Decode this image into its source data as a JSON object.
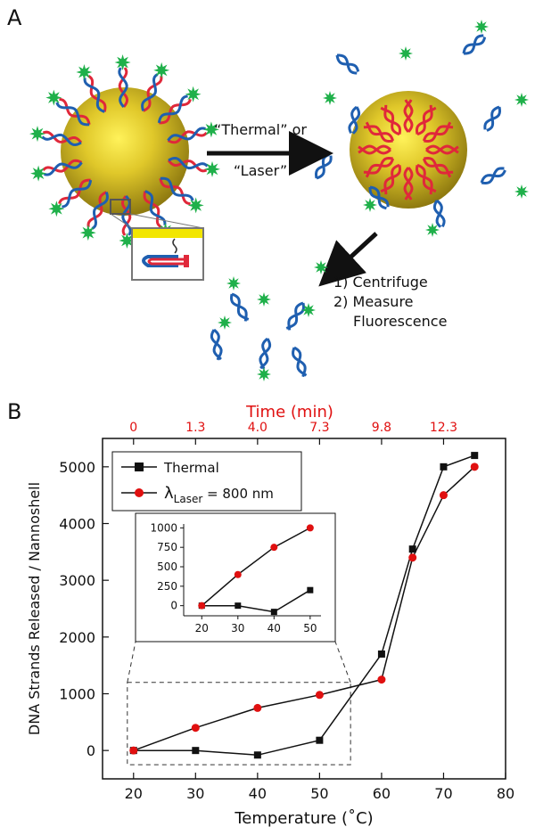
{
  "panel_a": {
    "label": "A",
    "arrow_text_line1": "“Thermal” or",
    "arrow_text_line2": "“Laser”",
    "step1": "1) Centrifuge",
    "step2": "2) Measure",
    "step3": "Fluorescence",
    "colors": {
      "gold": "#c8b020",
      "dna_red": "#e0283a",
      "dna_blue": "#1f5fb0",
      "fluor": "#1fb04a"
    }
  },
  "panel_b": {
    "label": "B"
  },
  "chart_data": [
    {
      "type": "line",
      "xlabel": "Temperature (˚C)",
      "ylabel": "DNA Strands Released / Nannoshell",
      "top_axis_label": "Time (min)",
      "top_ticks": [
        {
          "x": 20,
          "label": "0"
        },
        {
          "x": 30,
          "label": "1.3"
        },
        {
          "x": 40,
          "label": "4.0"
        },
        {
          "x": 50,
          "label": "7.3"
        },
        {
          "x": 60,
          "label": "9.8"
        },
        {
          "x": 70,
          "label": "12.3"
        }
      ],
      "xlim": [
        15,
        80
      ],
      "ylim": [
        -500,
        5500
      ],
      "xticks": [
        20,
        30,
        40,
        50,
        60,
        70,
        80
      ],
      "yticks": [
        0,
        1000,
        2000,
        3000,
        4000,
        5000
      ],
      "legend_position": "top-left",
      "series": [
        {
          "name": "Thermal",
          "marker": "square",
          "color": "#111111",
          "x": [
            20,
            30,
            40,
            50,
            60,
            65,
            70,
            75
          ],
          "y": [
            0,
            0,
            -80,
            180,
            1700,
            3550,
            5000,
            5200
          ]
        },
        {
          "name_main": "λ",
          "name_sub": "Laser",
          "name_tail": " = 800 nm",
          "marker": "circle",
          "color": "#e01010",
          "x": [
            20,
            30,
            40,
            50,
            60,
            65,
            70,
            75
          ],
          "y": [
            0,
            400,
            750,
            980,
            1250,
            3400,
            4500,
            5000
          ]
        }
      ]
    },
    {
      "type": "line",
      "role": "inset",
      "xlim": [
        15,
        53
      ],
      "ylim": [
        -130,
        1050
      ],
      "xticks": [
        20,
        30,
        40,
        50
      ],
      "yticks": [
        0,
        250,
        500,
        750,
        1000
      ],
      "series": [
        {
          "marker": "square",
          "color": "#111111",
          "x": [
            20,
            30,
            40,
            50
          ],
          "y": [
            0,
            0,
            -80,
            200
          ]
        },
        {
          "marker": "circle",
          "color": "#e01010",
          "x": [
            20,
            30,
            40,
            50
          ],
          "y": [
            0,
            400,
            750,
            1000
          ]
        }
      ]
    }
  ]
}
